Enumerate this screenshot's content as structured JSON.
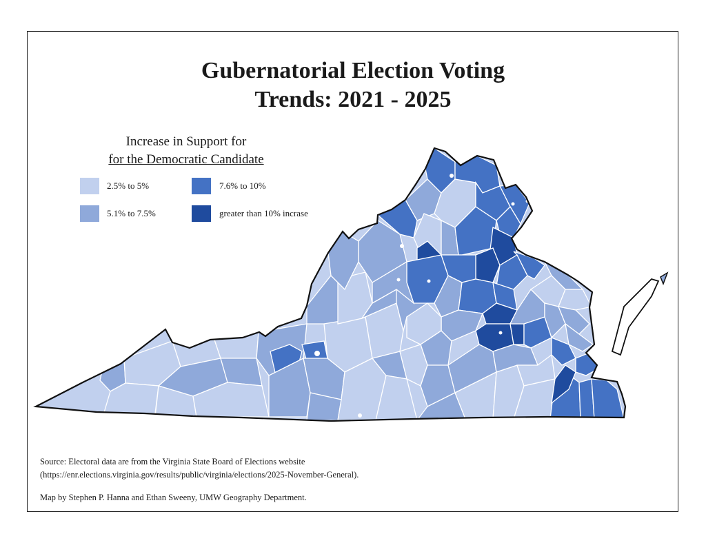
{
  "title_line1": "Gubernatorial Election Voting",
  "title_line2": "Trends: 2021 - 2025",
  "legend": {
    "title_line1": "Increase in Support for",
    "title_line2": "for the Democratic Candidate",
    "items": [
      {
        "label": "2.5% to 5%",
        "color": "#c1d0ee"
      },
      {
        "label": "5.1% to 7.5%",
        "color": "#8fa9da"
      },
      {
        "label": "7.6% to 10%",
        "color": "#4472c4"
      },
      {
        "label": "greater than 10% incrase",
        "color": "#1f4b9e"
      }
    ]
  },
  "source_line1": "Source:  Electoral data are from the Virginia State Board of Elections website",
  "source_line2": "(https://enr.elections.virginia.gov/results/public/virginia/elections/2025-November-General).",
  "credit": "Map by Stephen P. Hanna and Ethan Sweeny, UMW Geography Department."
}
